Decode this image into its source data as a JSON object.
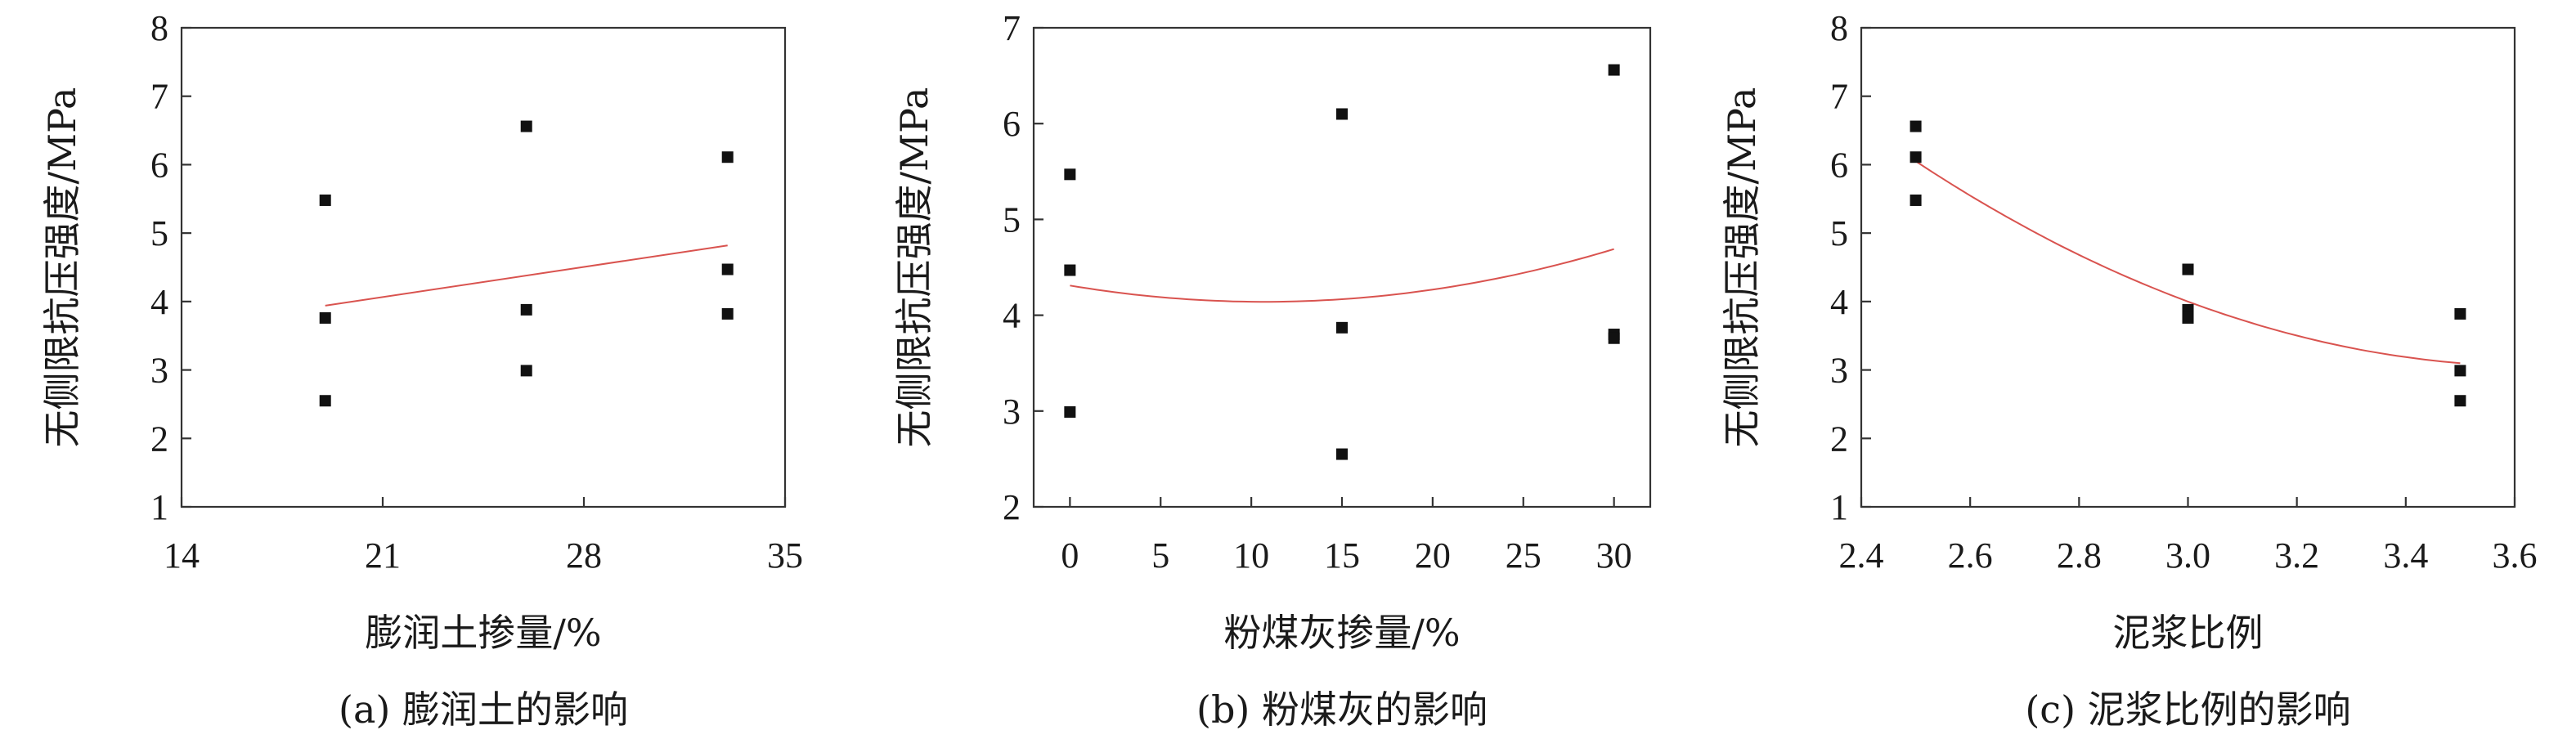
{
  "colors": {
    "marker": "#111111",
    "trendline": "#d9534f",
    "axis": "#333333"
  },
  "chart_data": [
    {
      "type": "scatter",
      "xlabel": "膨润土掺量/%",
      "ylabel": "无侧限抗压强度/MPa",
      "caption": "(a) 膨润土的影响",
      "xlim": [
        14,
        35
      ],
      "ylim": [
        1,
        8
      ],
      "xticks": [
        14,
        21,
        28,
        35
      ],
      "yticks": [
        1,
        2,
        3,
        4,
        5,
        6,
        7,
        8
      ],
      "xtick_labels": [
        "14",
        "21",
        "28",
        "35"
      ],
      "ytick_labels": [
        "1",
        "2",
        "3",
        "4",
        "5",
        "6",
        "7",
        "8"
      ],
      "points": [
        {
          "x": 19,
          "y": 5.48
        },
        {
          "x": 19,
          "y": 3.76
        },
        {
          "x": 19,
          "y": 2.55
        },
        {
          "x": 26,
          "y": 6.56
        },
        {
          "x": 26,
          "y": 3.88
        },
        {
          "x": 26,
          "y": 2.99
        },
        {
          "x": 33,
          "y": 6.11
        },
        {
          "x": 33,
          "y": 4.47
        },
        {
          "x": 33,
          "y": 3.82
        }
      ],
      "trendline": {
        "kind": "linear",
        "x": [
          19,
          33
        ],
        "y": [
          3.94,
          4.82
        ]
      },
      "grid": false
    },
    {
      "type": "scatter",
      "xlabel": "粉煤灰掺量/%",
      "ylabel": "无侧限抗压强度/MPa",
      "caption": "(b) 粉煤灰的影响",
      "xlim": [
        -2,
        32
      ],
      "ylim": [
        2,
        7
      ],
      "xticks": [
        0,
        5,
        10,
        15,
        20,
        25,
        30
      ],
      "yticks": [
        2,
        3,
        4,
        5,
        6,
        7
      ],
      "xtick_labels": [
        "0",
        "5",
        "10",
        "15",
        "20",
        "25",
        "30"
      ],
      "ytick_labels": [
        "2",
        "3",
        "4",
        "5",
        "6",
        "7"
      ],
      "points": [
        {
          "x": 0,
          "y": 5.47
        },
        {
          "x": 0,
          "y": 4.47
        },
        {
          "x": 0,
          "y": 2.99
        },
        {
          "x": 15,
          "y": 6.1
        },
        {
          "x": 15,
          "y": 3.87
        },
        {
          "x": 15,
          "y": 2.55
        },
        {
          "x": 30,
          "y": 6.56
        },
        {
          "x": 30,
          "y": 3.8
        },
        {
          "x": 30,
          "y": 3.76
        }
      ],
      "trendline": {
        "kind": "polynomial",
        "x": [
          0,
          10.6,
          30
        ],
        "y": [
          4.31,
          4.14,
          4.69
        ]
      },
      "grid": false
    },
    {
      "type": "scatter",
      "xlabel": "泥浆比例",
      "ylabel": "无侧限抗压强度/MPa",
      "caption": "(c) 泥浆比例的影响",
      "xlim": [
        2.4,
        3.6
      ],
      "ylim": [
        1,
        8
      ],
      "xticks": [
        2.4,
        2.6,
        2.8,
        3.0,
        3.2,
        3.4,
        3.6
      ],
      "yticks": [
        1,
        2,
        3,
        4,
        5,
        6,
        7,
        8
      ],
      "xtick_labels": [
        "2.4",
        "2.6",
        "2.8",
        "3.0",
        "3.2",
        "3.4",
        "3.6"
      ],
      "ytick_labels": [
        "1",
        "2",
        "3",
        "4",
        "5",
        "6",
        "7",
        "8"
      ],
      "points": [
        {
          "x": 2.5,
          "y": 6.56
        },
        {
          "x": 2.5,
          "y": 6.11
        },
        {
          "x": 2.5,
          "y": 5.48
        },
        {
          "x": 3.0,
          "y": 4.47
        },
        {
          "x": 3.0,
          "y": 3.88
        },
        {
          "x": 3.0,
          "y": 3.76
        },
        {
          "x": 3.5,
          "y": 3.82
        },
        {
          "x": 3.5,
          "y": 2.99
        },
        {
          "x": 3.5,
          "y": 2.55
        }
      ],
      "trendline": {
        "kind": "polynomial",
        "x": [
          2.5,
          3.0,
          3.5
        ],
        "y": [
          6.05,
          4.0,
          3.1
        ]
      },
      "grid": false
    }
  ]
}
